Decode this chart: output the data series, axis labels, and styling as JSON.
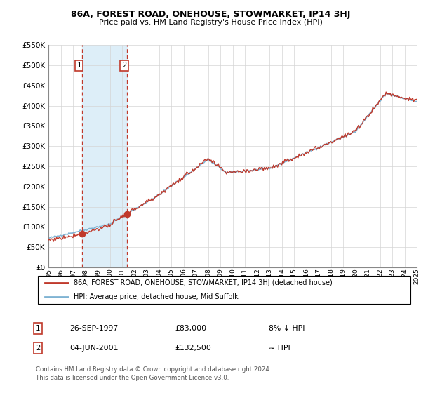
{
  "title": "86A, FOREST ROAD, ONEHOUSE, STOWMARKET, IP14 3HJ",
  "subtitle": "Price paid vs. HM Land Registry's House Price Index (HPI)",
  "legend_label1": "86A, FOREST ROAD, ONEHOUSE, STOWMARKET, IP14 3HJ (detached house)",
  "legend_label2": "HPI: Average price, detached house, Mid Suffolk",
  "purchase1_date": "26-SEP-1997",
  "purchase1_price": 83000,
  "purchase1_vs_hpi": "8% ↓ HPI",
  "purchase2_date": "04-JUN-2001",
  "purchase2_price": 132500,
  "purchase2_vs_hpi": "≈ HPI",
  "purchase1_x": 1997.73,
  "purchase2_x": 2001.42,
  "line_color": "#c0392b",
  "hpi_color": "#7fb3d3",
  "shaded_region_color": "#ddeef8",
  "vline_color": "#c0392b",
  "background_color": "#ffffff",
  "grid_color": "#d5d5d5",
  "footer_text": "Contains HM Land Registry data © Crown copyright and database right 2024.\nThis data is licensed under the Open Government Licence v3.0.",
  "ylim": [
    0,
    550000
  ],
  "xlim_start": 1995,
  "xlim_end": 2025,
  "yticks": [
    0,
    50000,
    100000,
    150000,
    200000,
    250000,
    300000,
    350000,
    400000,
    450000,
    500000,
    550000
  ]
}
